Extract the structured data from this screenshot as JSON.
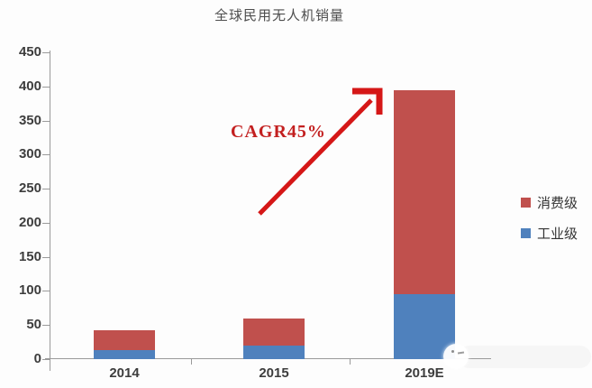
{
  "title": "全球民用无人机销量",
  "chart_data": {
    "type": "bar",
    "stacked": true,
    "title": "全球民用无人机销量",
    "categories": [
      "2014",
      "2015",
      "2019E"
    ],
    "series": [
      {
        "name": "工业级",
        "color": "#4f81bd",
        "values": [
          13,
          20,
          95
        ]
      },
      {
        "name": "消费级",
        "color": "#c0504d",
        "values": [
          30,
          40,
          300
        ]
      }
    ],
    "stacked_totals": [
      43,
      60,
      395
    ],
    "ylim": [
      0,
      450
    ],
    "yticks": [
      450,
      400,
      350,
      300,
      250,
      200,
      150,
      100,
      50,
      0
    ],
    "xlabel": "",
    "ylabel": "",
    "grid": false,
    "legend_position": "right-middle",
    "annotation": {
      "text": "CAGR45%",
      "color": "#c32020",
      "arrow_direction": "up-right"
    }
  },
  "legend": {
    "items": [
      {
        "label": "消费级",
        "color": "#c0504d"
      },
      {
        "label": "工业级",
        "color": "#4f81bd"
      }
    ]
  },
  "colors": {
    "consumer_series": "#c0504d",
    "industrial_series": "#4f81bd",
    "arrow": "#d51717",
    "axis": "#9a9a9a",
    "tick_label": "#3d3d3d",
    "background": "#fdfdfd"
  }
}
